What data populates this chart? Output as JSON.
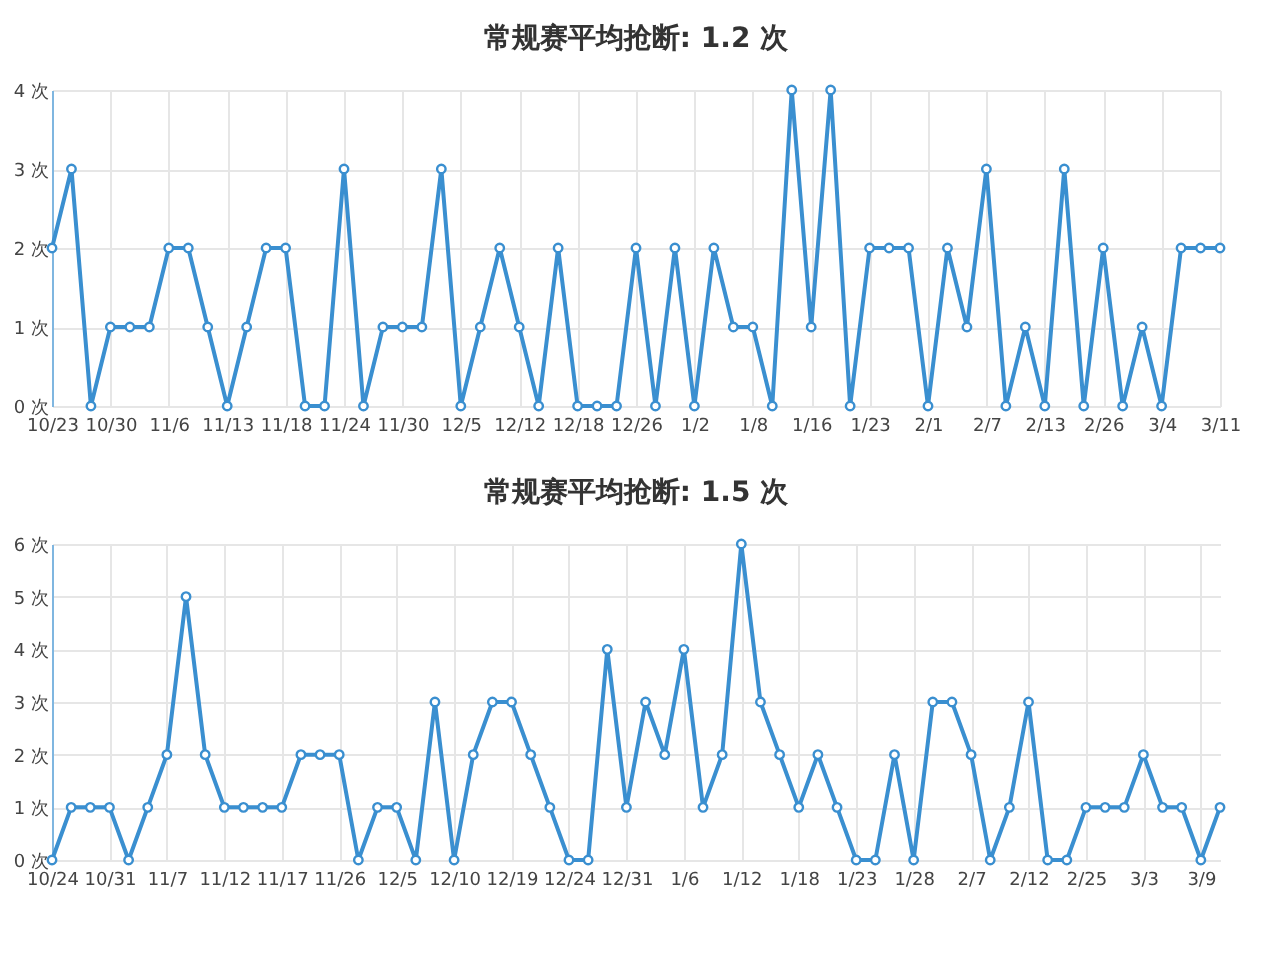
{
  "chart_data": [
    {
      "type": "line",
      "title": "常规赛平均抢断: 1.2 次",
      "categories": [
        "10/23",
        null,
        null,
        "10/30",
        null,
        null,
        "11/6",
        null,
        null,
        "11/13",
        null,
        null,
        "11/18",
        null,
        null,
        "11/24",
        null,
        null,
        "11/30",
        null,
        null,
        "12/5",
        null,
        null,
        "12/12",
        null,
        null,
        "12/18",
        null,
        null,
        "12/26",
        null,
        null,
        "1/2",
        null,
        null,
        "1/8",
        null,
        null,
        "1/16",
        null,
        null,
        "1/23",
        null,
        null,
        "2/1",
        null,
        null,
        "2/7",
        null,
        null,
        "2/13",
        null,
        null,
        "2/26",
        null,
        null,
        "3/4",
        null,
        null,
        "3/11"
      ],
      "series": [
        {
          "color": "#3a8fd0",
          "values": [
            2,
            3,
            0,
            1,
            1,
            1,
            2,
            2,
            1,
            0,
            1,
            2,
            2,
            0,
            0,
            3,
            0,
            1,
            1,
            1,
            3,
            0,
            1,
            2,
            1,
            0,
            2,
            0,
            0,
            0,
            2,
            0,
            2,
            0,
            2,
            1,
            1,
            0,
            4,
            1,
            4,
            0,
            2,
            2,
            2,
            0,
            2,
            1,
            3,
            0,
            1,
            0,
            3,
            0,
            2,
            0,
            1,
            0,
            2,
            2,
            2
          ]
        }
      ],
      "ylim": [
        0,
        4
      ],
      "yticks": [
        {
          "value": 0,
          "label": "0 次"
        },
        {
          "value": 1,
          "label": "1 次"
        },
        {
          "value": 2,
          "label": "2 次"
        },
        {
          "value": 3,
          "label": "3 次"
        },
        {
          "value": 4,
          "label": "4 次"
        }
      ],
      "grid": true,
      "marker": "circle"
    },
    {
      "type": "line",
      "title": "常规赛平均抢断: 1.5 次",
      "categories": [
        "10/24",
        null,
        null,
        "10/31",
        null,
        null,
        "11/7",
        null,
        null,
        "11/12",
        null,
        null,
        "11/17",
        null,
        null,
        "11/26",
        null,
        null,
        "12/5",
        null,
        null,
        "12/10",
        null,
        null,
        "12/19",
        null,
        null,
        "12/24",
        null,
        null,
        "12/31",
        null,
        null,
        "1/6",
        null,
        null,
        "1/12",
        null,
        null,
        "1/18",
        null,
        null,
        "1/23",
        null,
        null,
        "1/28",
        null,
        null,
        "2/7",
        null,
        null,
        "2/12",
        null,
        null,
        "2/25",
        null,
        null,
        "3/3",
        null,
        null,
        "3/9",
        null
      ],
      "series": [
        {
          "color": "#3a8fd0",
          "values": [
            0,
            1,
            1,
            1,
            0,
            1,
            2,
            5,
            2,
            1,
            1,
            1,
            1,
            2,
            2,
            2,
            0,
            1,
            1,
            0,
            3,
            0,
            2,
            3,
            3,
            2,
            1,
            0,
            0,
            4,
            1,
            3,
            2,
            4,
            1,
            2,
            6,
            3,
            2,
            1,
            2,
            1,
            0,
            0,
            2,
            0,
            3,
            3,
            2,
            0,
            1,
            3,
            0,
            0,
            1,
            1,
            1,
            2,
            1,
            1,
            0,
            1
          ]
        }
      ],
      "ylim": [
        0,
        6
      ],
      "yticks": [
        {
          "value": 0,
          "label": "0 次"
        },
        {
          "value": 1,
          "label": "1 次"
        },
        {
          "value": 2,
          "label": "2 次"
        },
        {
          "value": 3,
          "label": "3 次"
        },
        {
          "value": 4,
          "label": "4 次"
        },
        {
          "value": 5,
          "label": "5 次"
        },
        {
          "value": 6,
          "label": "6 次"
        }
      ],
      "grid": true,
      "marker": "circle"
    }
  ]
}
